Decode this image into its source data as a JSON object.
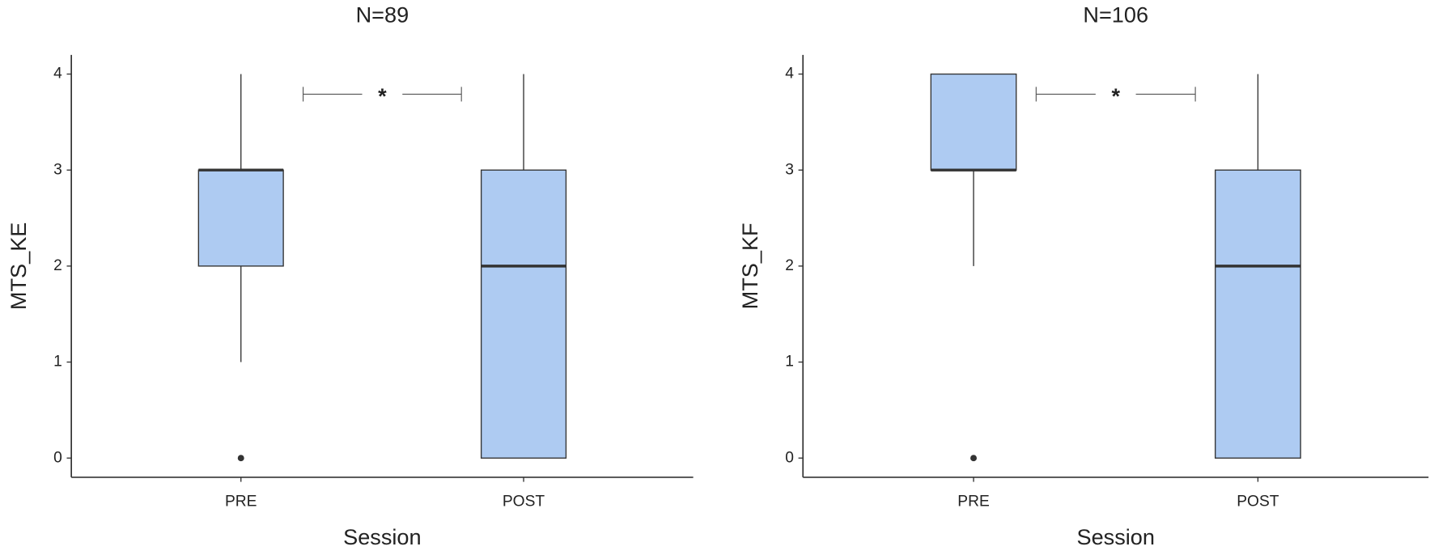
{
  "chart_data": [
    {
      "type": "box",
      "title": "N=89",
      "y_label": "MTS_KE",
      "x_label": "Session",
      "categories": [
        "PRE",
        "POST"
      ],
      "color": "#aecbf2",
      "boxes": [
        {
          "whislo": 1,
          "q1": 2,
          "med": 3,
          "q3": 3,
          "whishi": 4,
          "outliers": [
            0
          ]
        },
        {
          "whislo": 0,
          "q1": 0,
          "med": 2,
          "q3": 3,
          "whishi": 4,
          "outliers": []
        }
      ],
      "annotation": "*",
      "ylim": [
        -0.2,
        4.2
      ],
      "yticks": [
        0,
        1,
        2,
        3,
        4
      ]
    },
    {
      "type": "box",
      "title": "N=106",
      "y_label": "MTS_KF",
      "x_label": "Session",
      "categories": [
        "PRE",
        "POST"
      ],
      "color": "#aecbf2",
      "boxes": [
        {
          "whislo": 2,
          "q1": 3,
          "med": 3,
          "q3": 4,
          "whishi": 4,
          "outliers": [
            0
          ]
        },
        {
          "whislo": 0,
          "q1": 0,
          "med": 2,
          "q3": 3,
          "whishi": 4,
          "outliers": []
        }
      ],
      "annotation": "*",
      "ylim": [
        -0.2,
        4.2
      ],
      "yticks": [
        0,
        1,
        2,
        3,
        4
      ]
    }
  ]
}
